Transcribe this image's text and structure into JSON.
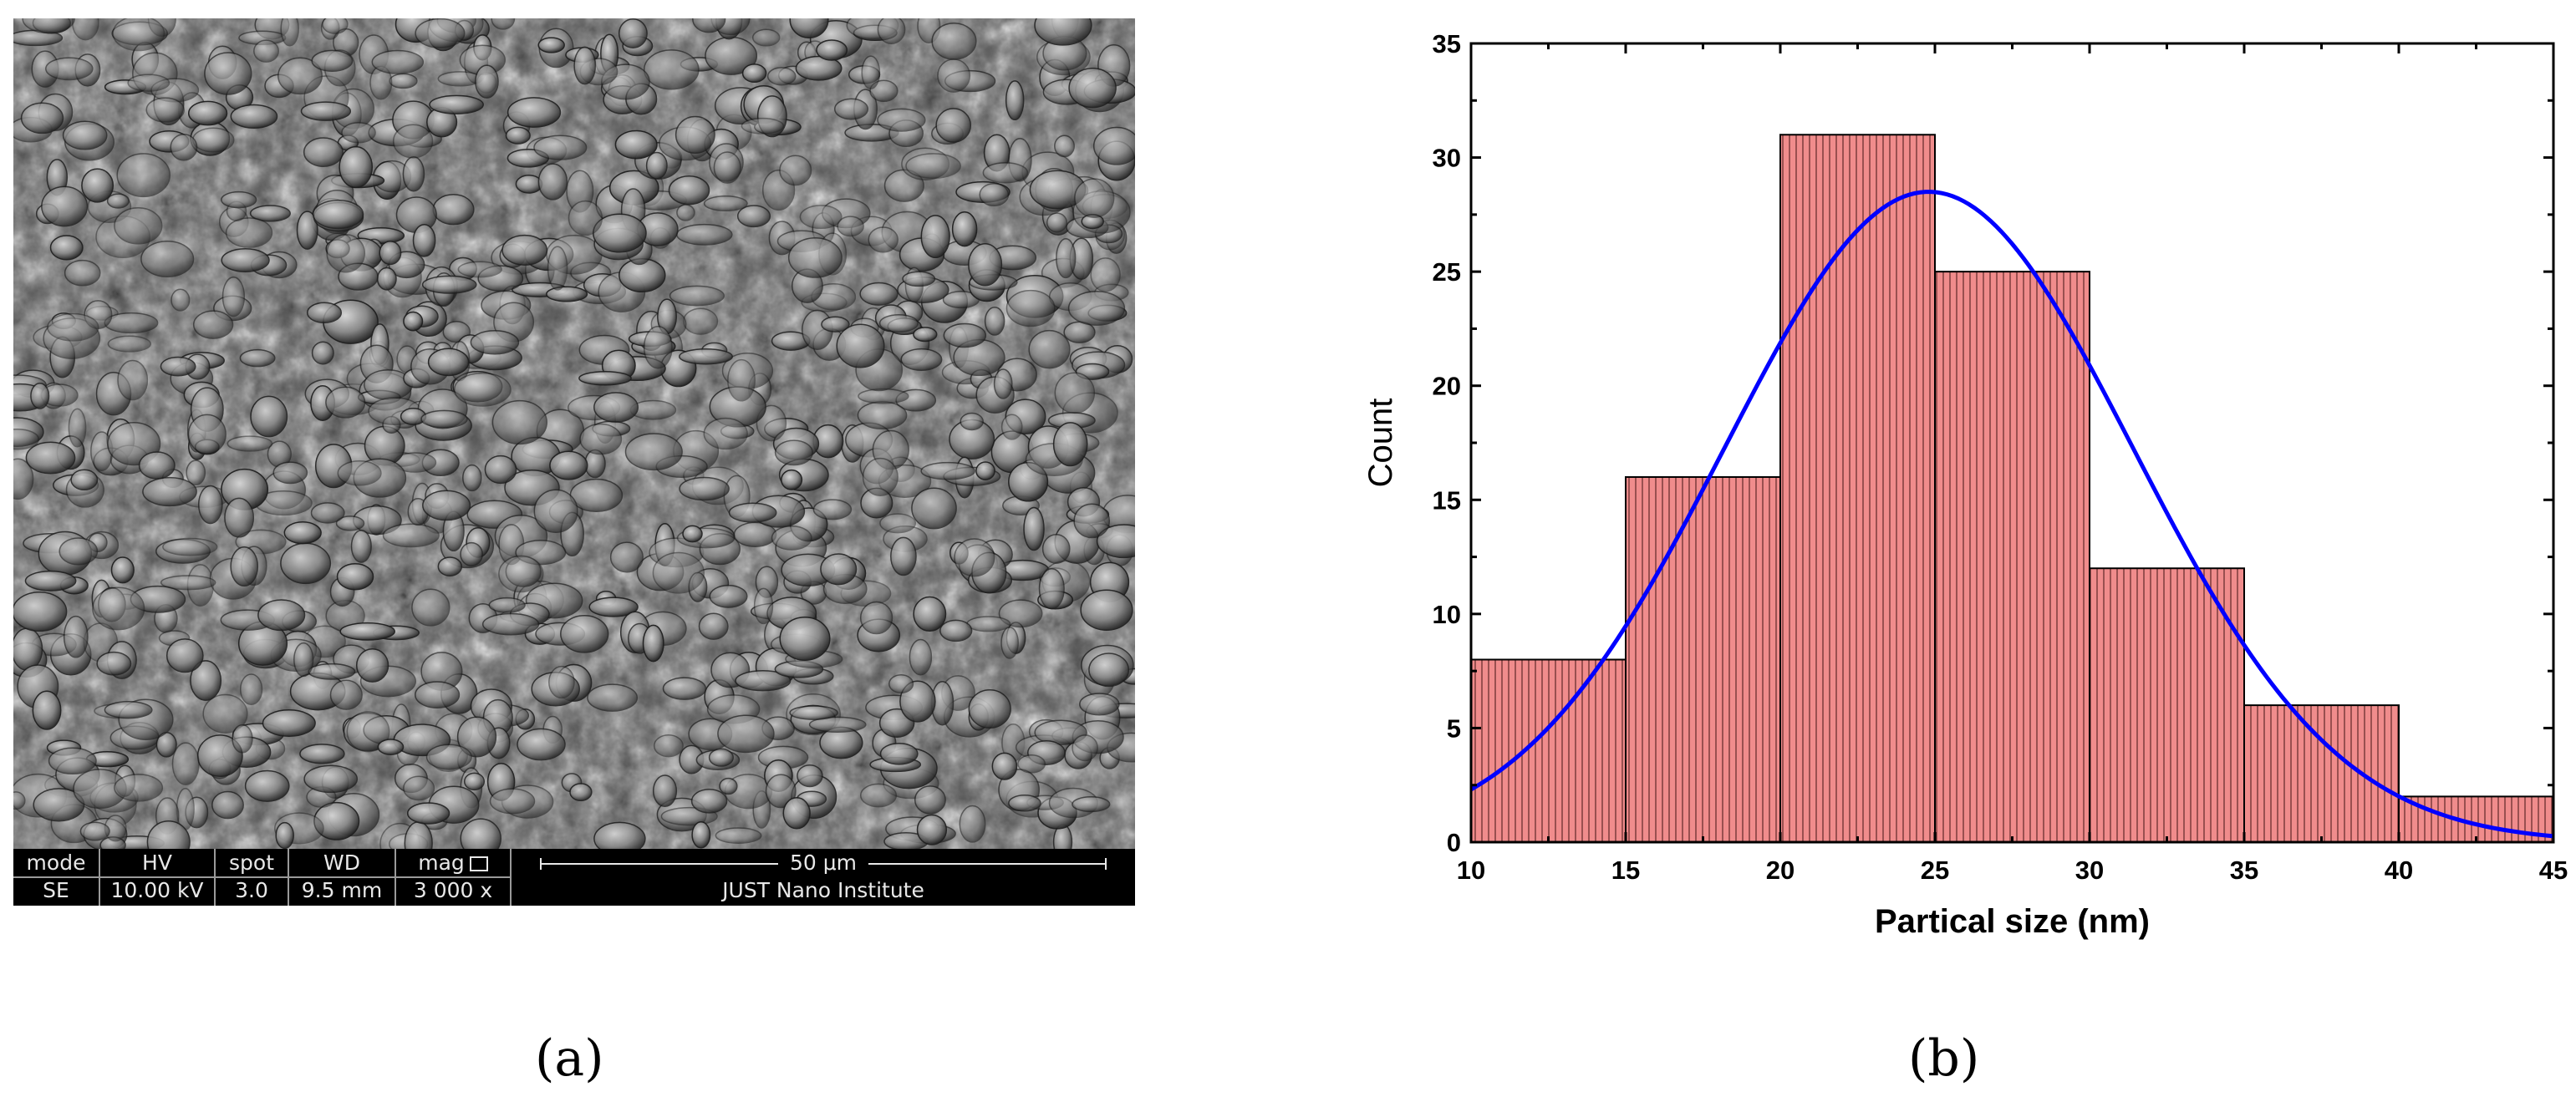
{
  "panels": {
    "a": {
      "label": "(a)",
      "databar": {
        "columns": [
          {
            "header": "mode",
            "value": "SE"
          },
          {
            "header": "HV",
            "value": "10.00 kV"
          },
          {
            "header": "spot",
            "value": "3.0"
          },
          {
            "header": "WD",
            "value": "9.5 mm"
          },
          {
            "header": "mag",
            "value": "3 000 x"
          }
        ],
        "scale_bar_text": "50 μm",
        "institute": "JUST Nano Institute"
      }
    },
    "b": {
      "label": "(b)"
    }
  },
  "chart_data": {
    "type": "bar",
    "title": "",
    "xlabel": "Partical size (nm)",
    "ylabel": "Count",
    "xlim": [
      10,
      45
    ],
    "ylim": [
      0,
      35
    ],
    "xticks": [
      10,
      15,
      20,
      25,
      30,
      35,
      40,
      45
    ],
    "yticks": [
      0,
      5,
      10,
      15,
      20,
      25,
      30,
      35
    ],
    "bins": [
      {
        "start": 10,
        "end": 15,
        "count": 8
      },
      {
        "start": 15,
        "end": 20,
        "count": 16
      },
      {
        "start": 20,
        "end": 25,
        "count": 31
      },
      {
        "start": 25,
        "end": 30,
        "count": 25
      },
      {
        "start": 30,
        "end": 35,
        "count": 12
      },
      {
        "start": 35,
        "end": 40,
        "count": 6
      },
      {
        "start": 40,
        "end": 45,
        "count": 2
      }
    ],
    "fit": {
      "type": "gaussian",
      "mean": 24.8,
      "sigma": 6.6,
      "peak": 28.5
    },
    "bar_color": "#f08c8c",
    "bar_hatch_color": "#6a3030",
    "fit_color": "#0000ff",
    "grid": false,
    "legend": "none"
  }
}
